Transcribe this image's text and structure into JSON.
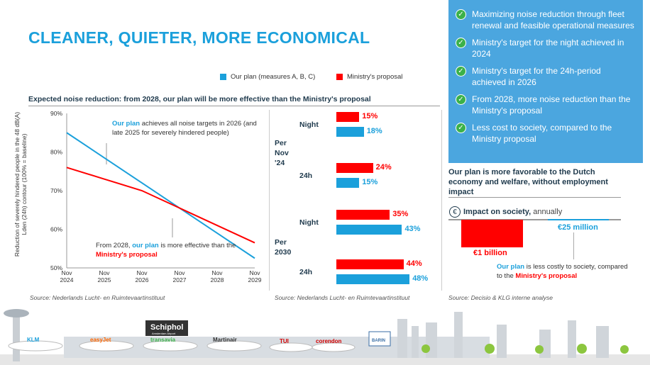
{
  "title": "CLEANER, QUIETER, MORE ECONOMICAL",
  "legend": {
    "our_plan": "Our plan (measures A, B, C)",
    "ministry": "Ministry's proposal"
  },
  "colors": {
    "our_plan": "#1ba0db",
    "ministry": "#ff0000",
    "panel": "#4ba6df",
    "check": "#3bb14a"
  },
  "subtitle": "Expected noise reduction: from 2028, our plan will be more effective than the Ministry's proposal",
  "chart_data": [
    {
      "type": "line",
      "ylabel": "Reduction of severely hindered people in the 48 dB(A) Lden (24h) contour (100% = baseline)",
      "x": [
        "Nov 2024",
        "Nov 2025",
        "Nov 2026",
        "Nov 2027",
        "Nov 2028",
        "Nov 2029"
      ],
      "yticks": [
        "90%",
        "80%",
        "70%",
        "60%",
        "50%"
      ],
      "ylim": [
        50,
        90
      ],
      "series": [
        {
          "name": "Our plan (measures A, B, C)",
          "values": [
            85,
            78.5,
            72,
            65.5,
            59,
            52.5
          ]
        },
        {
          "name": "Ministry's proposal",
          "values": [
            76,
            73,
            70,
            65.5,
            61,
            56.5
          ]
        }
      ],
      "annotations": {
        "top": {
          "a": "Our plan",
          "b": " achieves all noise targets in 2026 (and late 2025 for severely hindered people)"
        },
        "bottom": {
          "a": "From 2028, ",
          "b": "our plan",
          "c": " is more effective than the ",
          "d": "Ministry's proposal"
        }
      },
      "source": "Source: Nederlands  Lucht- en Ruimtevaartinstituut"
    },
    {
      "type": "bar",
      "groups": [
        {
          "label": "Per Nov '24",
          "rows": [
            {
              "label": "Night",
              "ministry": 15,
              "our_plan": 18
            },
            {
              "label": "24h",
              "ministry": 24,
              "our_plan": 15
            }
          ]
        },
        {
          "label": "Per 2030",
          "rows": [
            {
              "label": "Night",
              "ministry": 35,
              "our_plan": 43
            },
            {
              "label": "24h",
              "ministry": 44,
              "our_plan": 48
            }
          ]
        }
      ],
      "labels": {
        "g0": "Per\nNov\n'24",
        "g1": "Per\n2030",
        "v": [
          "15%",
          "18%",
          "24%",
          "15%",
          "35%",
          "43%",
          "44%",
          "48%"
        ],
        "rows": [
          "Night",
          "24h",
          "Night",
          "24h"
        ]
      },
      "source": "Source: Nederlands  Lucht- en Ruimtevaartinstituut"
    }
  ],
  "panel": {
    "items": [
      "Maximizing noise reduction through fleet renewal and feasible operational measures",
      "Ministry's target for the night achieved in 2024",
      "Ministry's target for the 24h-period achieved in 2026",
      "From 2028, more noise reduction than the Ministry's proposal",
      "Less cost to society, compared to the Ministry proposal"
    ]
  },
  "economy": {
    "heading": "Our plan is more favorable to the Dutch economy and welfare, without employment impact",
    "impact_bold": "Impact on society,",
    "impact_rest": " annually",
    "ministry_value": "€1 billion",
    "our_value": "€25 million",
    "note": {
      "a": "Our plan",
      "b": " is less costly to society, compared to the ",
      "c": "Ministry's proposal"
    },
    "source": "Source: Decisio & KLG interne analyse"
  },
  "scene": {
    "airport": "Schiphol",
    "airport_sub": "Amsterdam Airport",
    "brands": [
      "KLM",
      "easyJet",
      "transavia",
      "Martinair",
      "TUI",
      "corendon",
      "BARIN"
    ]
  }
}
